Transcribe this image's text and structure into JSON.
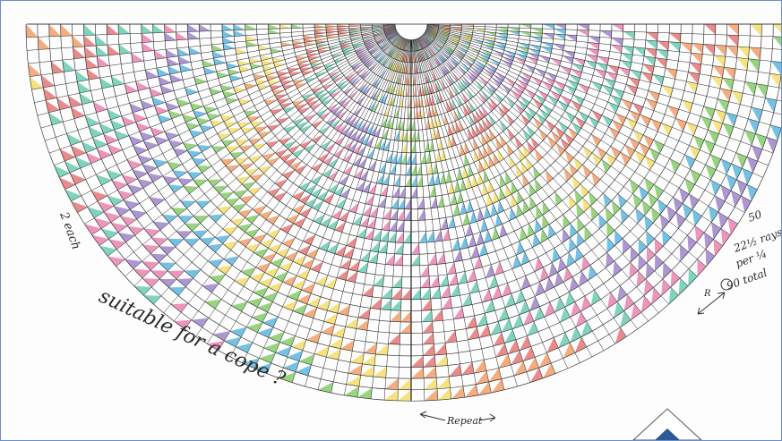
{
  "annotations": {
    "caption": "suitable for a cope ?",
    "left_note": "2 each",
    "right_note_line1": "50",
    "right_note_line2": "22½ rays",
    "right_note_line3": "per ¼",
    "right_note_line4": "90 total",
    "repeat_label": "Repeat",
    "right_arrow_label": "R"
  },
  "palette": [
    "#e05a5a",
    "#f08a4a",
    "#f2d64a",
    "#6cc24a",
    "#3aa7d8",
    "#8a6bbf",
    "#e46aa0",
    "#4ac0a0"
  ]
}
